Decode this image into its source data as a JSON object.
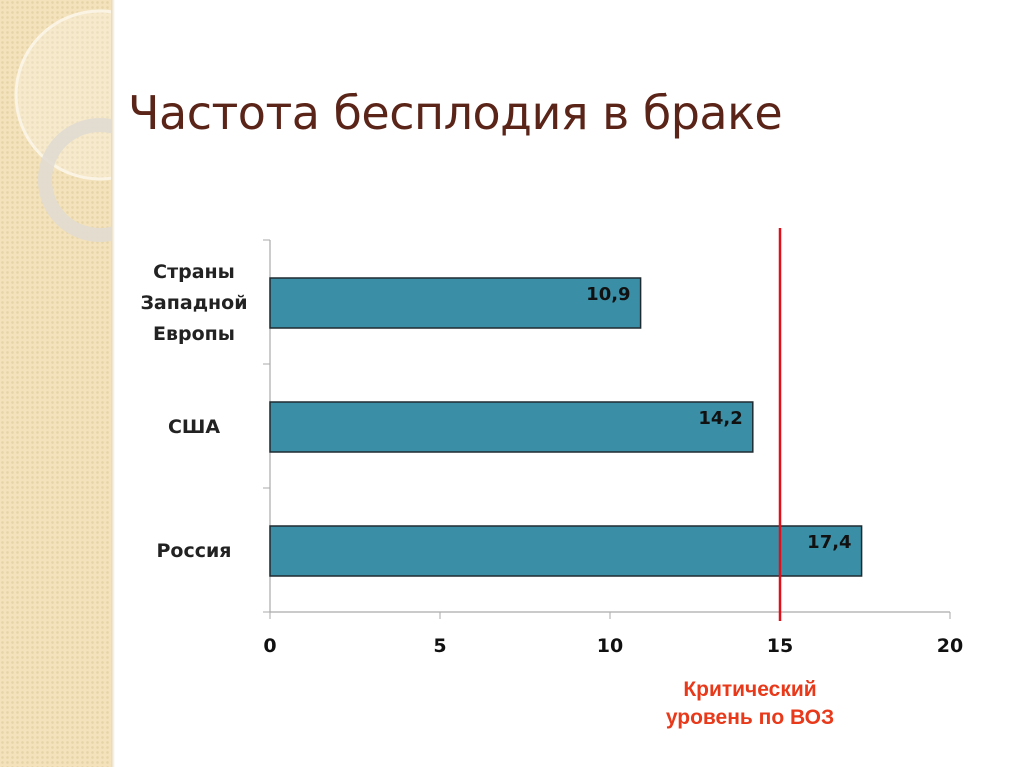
{
  "title": "Частота бесплодия в браке",
  "chart_data": {
    "type": "bar",
    "orientation": "horizontal",
    "categories": [
      "Страны Западной Европы",
      "США",
      "Россия"
    ],
    "category_lines": [
      [
        "Страны",
        "Западной",
        "Европы"
      ],
      [
        "США"
      ],
      [
        "Россия"
      ]
    ],
    "values": [
      10.9,
      14.2,
      17.4
    ],
    "data_labels": [
      "10,9",
      "14,2",
      "17,4"
    ],
    "xlim": [
      0,
      20
    ],
    "x_ticks": [
      0,
      5,
      10,
      15,
      20
    ],
    "grid": false,
    "bar_color": "#3a8fa6",
    "reference_line": {
      "value": 15,
      "color": "#e0101a",
      "label": "Критический уровень по ВОЗ",
      "label_lines": [
        "Критический",
        "уровень по ВОЗ"
      ]
    }
  }
}
